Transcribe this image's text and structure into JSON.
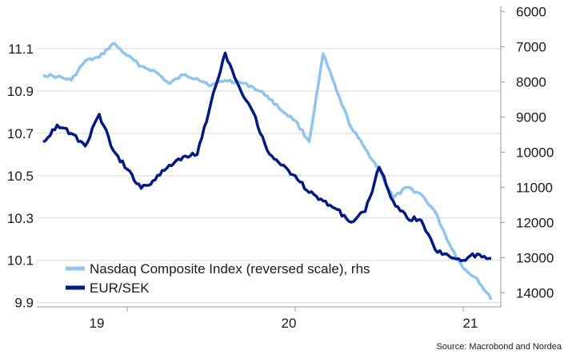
{
  "chart_data": {
    "type": "line",
    "legend_position": "bottom-left",
    "grid": "horizontal",
    "x_tick_labels": [
      "19",
      "20",
      "21"
    ],
    "y_left": {
      "ticks": [
        9.9,
        10.1,
        10.3,
        10.5,
        10.7,
        10.9,
        11.1
      ],
      "range": [
        9.88,
        11.3
      ]
    },
    "y_right": {
      "ticks": [
        6000,
        7000,
        8000,
        9000,
        10000,
        11000,
        12000,
        13000,
        14000
      ],
      "range": [
        5850,
        14400
      ],
      "reversed": true
    },
    "series": [
      {
        "name": "Nasdaq Composite Index (reversed scale), rhs",
        "axis": "right",
        "color": "#8ec5f0",
        "x": [
          "2018-07",
          "2018-08",
          "2018-09",
          "2018-10",
          "2018-11",
          "2018-12",
          "2019-01",
          "2019-02",
          "2019-03",
          "2019-04",
          "2019-05",
          "2019-06",
          "2019-07",
          "2019-08",
          "2019-09",
          "2019-10",
          "2019-11",
          "2019-12",
          "2020-01",
          "2020-02",
          "2020-03",
          "2020-04",
          "2020-05",
          "2020-06",
          "2020-07",
          "2020-08",
          "2020-09",
          "2020-10",
          "2020-11",
          "2020-12",
          "2021-01",
          "2021-02",
          "2021-03"
        ],
        "values": [
          7800,
          7850,
          7950,
          7400,
          7300,
          6900,
          7250,
          7550,
          7700,
          8050,
          7800,
          7900,
          8100,
          7950,
          8000,
          8150,
          8400,
          8800,
          9100,
          9700,
          7200,
          8300,
          9300,
          9900,
          10500,
          11300,
          11000,
          11200,
          11700,
          12600,
          13300,
          13600,
          14200
        ]
      },
      {
        "name": "EUR/SEK",
        "axis": "left",
        "color": "#001a8c",
        "x": [
          "2018-07",
          "2018-08",
          "2018-09",
          "2018-10",
          "2018-11",
          "2018-12",
          "2019-01",
          "2019-02",
          "2019-03",
          "2019-04",
          "2019-05",
          "2019-06",
          "2019-07",
          "2019-08",
          "2019-09",
          "2019-10",
          "2019-11",
          "2019-12",
          "2020-01",
          "2020-02",
          "2020-03",
          "2020-04",
          "2020-05",
          "2020-06",
          "2020-07",
          "2020-08",
          "2020-09",
          "2020-10",
          "2020-11",
          "2020-12",
          "2021-01",
          "2021-02",
          "2021-03"
        ],
        "values": [
          10.66,
          10.74,
          10.7,
          10.64,
          10.79,
          10.62,
          10.53,
          10.44,
          10.48,
          10.55,
          10.59,
          10.6,
          10.85,
          11.08,
          10.92,
          10.8,
          10.62,
          10.55,
          10.5,
          10.42,
          10.38,
          10.34,
          10.28,
          10.33,
          10.54,
          10.38,
          10.3,
          10.29,
          10.15,
          10.12,
          10.1,
          10.13,
          10.11
        ]
      }
    ],
    "source": "Source: Macrobond and Nordea"
  }
}
